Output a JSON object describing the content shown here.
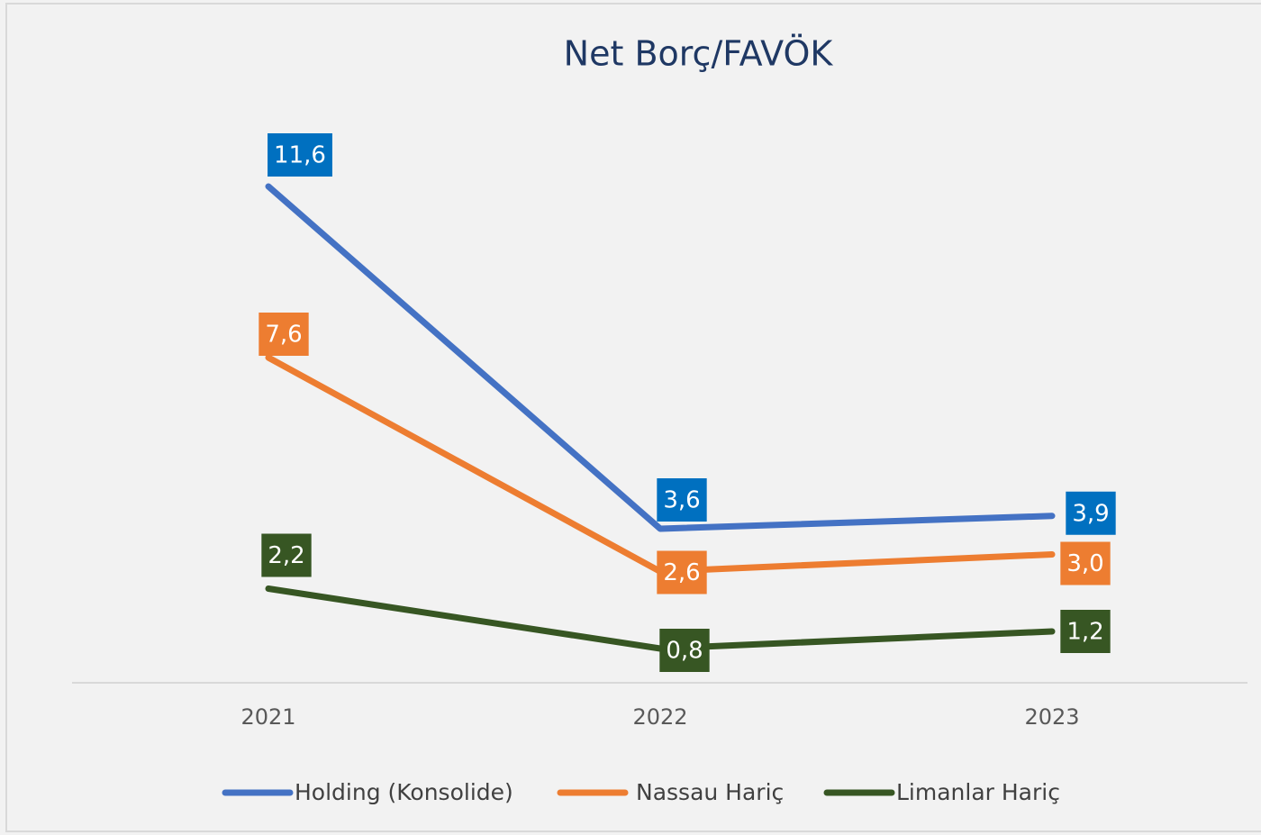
{
  "chart_data": {
    "type": "line",
    "title": "Net Borç/FAVÖK",
    "categories": [
      "2021",
      "2022",
      "2023"
    ],
    "ylim": [
      0,
      14
    ],
    "series": [
      {
        "name": "Holding (Konsolide)",
        "color": "#4472c4",
        "label_color": "#0070c0",
        "values": [
          11.6,
          3.6,
          3.9
        ],
        "value_labels": [
          "11,6",
          "3,6",
          "3,9"
        ]
      },
      {
        "name": "Nassau Hariç",
        "color": "#ed7d31",
        "label_color": "#ed7d31",
        "values": [
          7.6,
          2.6,
          3.0
        ],
        "value_labels": [
          "7,6",
          "2,6",
          "3,0"
        ]
      },
      {
        "name": "Limanlar Hariç",
        "color": "#375623",
        "label_color": "#375623",
        "values": [
          2.2,
          0.8,
          1.2
        ],
        "value_labels": [
          "2,2",
          "0,8",
          "1,2"
        ]
      }
    ]
  }
}
